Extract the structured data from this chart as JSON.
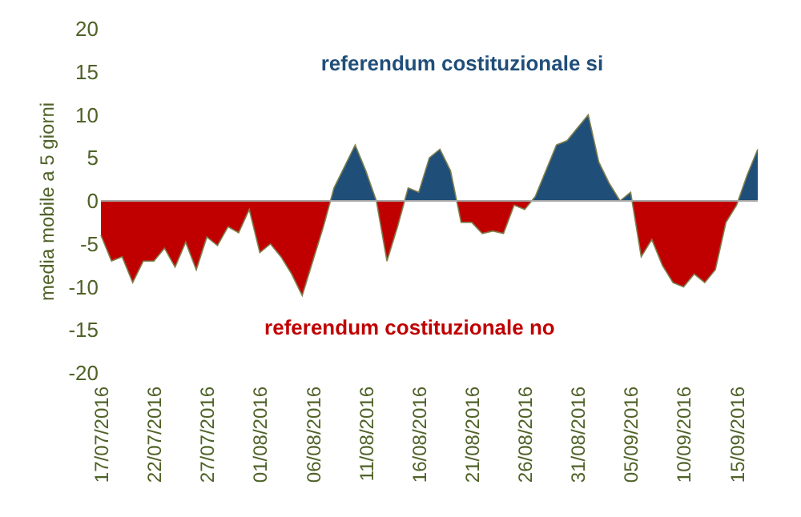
{
  "chart_data": {
    "type": "area",
    "ylabel": "media mobile a 5 giorni",
    "annotations": [
      "referendum costituzionale si",
      "referendum costituzionale no"
    ],
    "x": [
      "2016-07-17",
      "2016-07-18",
      "2016-07-19",
      "2016-07-20",
      "2016-07-21",
      "2016-07-22",
      "2016-07-23",
      "2016-07-24",
      "2016-07-25",
      "2016-07-26",
      "2016-07-27",
      "2016-07-28",
      "2016-07-29",
      "2016-07-30",
      "2016-07-31",
      "2016-08-01",
      "2016-08-02",
      "2016-08-03",
      "2016-08-04",
      "2016-08-05",
      "2016-08-06",
      "2016-08-07",
      "2016-08-08",
      "2016-08-09",
      "2016-08-10",
      "2016-08-11",
      "2016-08-12",
      "2016-08-13",
      "2016-08-14",
      "2016-08-15",
      "2016-08-16",
      "2016-08-17",
      "2016-08-18",
      "2016-08-19",
      "2016-08-20",
      "2016-08-21",
      "2016-08-22",
      "2016-08-23",
      "2016-08-24",
      "2016-08-25",
      "2016-08-26",
      "2016-08-27",
      "2016-08-28",
      "2016-08-29",
      "2016-08-30",
      "2016-08-31",
      "2016-09-01",
      "2016-09-02",
      "2016-09-03",
      "2016-09-04",
      "2016-09-05",
      "2016-09-06",
      "2016-09-07",
      "2016-09-08",
      "2016-09-09",
      "2016-09-10",
      "2016-09-11",
      "2016-09-12",
      "2016-09-13",
      "2016-09-14",
      "2016-09-15",
      "2016-09-16",
      "2016-09-17"
    ],
    "series": [
      {
        "colors": [
          "#c00000",
          "#c00000",
          "#c00000",
          "#c00000",
          "#c00000",
          "#c00000",
          "#c00000",
          "#c00000",
          "#c00000",
          "#c00000",
          "#c00000",
          "#c00000",
          "#c00000",
          "#c00000",
          "#c00000",
          "#c00000",
          "#c00000",
          "#c00000",
          "#c00000",
          "#c00000",
          "#c00000",
          "#c00000",
          "#1f4e79",
          "#1f4e79",
          "#1f4e79",
          "#1f4e79",
          "#c00000",
          "#c00000",
          "#c00000",
          "#1f4e79",
          "#1f4e79",
          "#1f4e79",
          "#1f4e79",
          "#1f4e79",
          "#c00000",
          "#c00000",
          "#c00000",
          "#c00000",
          "#c00000",
          "#c00000",
          "#c00000",
          "#1f4e79",
          "#1f4e79",
          "#1f4e79",
          "#1f4e79",
          "#1f4e79",
          "#1f4e79",
          "#1f4e79",
          "#1f4e79",
          "#c00000",
          "#1f4e79",
          "#c00000",
          "#c00000",
          "#c00000",
          "#c00000",
          "#c00000",
          "#c00000",
          "#c00000",
          "#c00000",
          "#c00000",
          "#c00000",
          "#1f4e79",
          "#1f4e79"
        ],
        "values": [
          -4,
          -7,
          -6.5,
          -9.5,
          -7,
          -7,
          -5.5,
          -7.7,
          -4.8,
          -8,
          -4.2,
          -5.2,
          -3,
          -3.7,
          -1,
          -6,
          -5,
          -6.5,
          -8.5,
          -11,
          -7,
          -3,
          1.5,
          4,
          6.5,
          3.5,
          0,
          -7,
          -3,
          1.5,
          1,
          5,
          6,
          3.5,
          -2.5,
          -2.5,
          -3.8,
          -3.5,
          -3.8,
          -0.5,
          -1,
          0.5,
          3.5,
          6.5,
          7,
          8.5,
          10,
          4.5,
          2,
          0,
          1,
          -6.5,
          -4.5,
          -7.5,
          -9.5,
          -10,
          -8.5,
          -9.5,
          -8,
          -2.5,
          -0.5,
          3,
          6
        ]
      }
    ],
    "xticks": [
      {
        "value": "2016-07-17",
        "label": "17/07/2016"
      },
      {
        "value": "2016-07-22",
        "label": "22/07/2016"
      },
      {
        "value": "2016-07-27",
        "label": "27/07/2016"
      },
      {
        "value": "2016-08-01",
        "label": "01/08/2016"
      },
      {
        "value": "2016-08-06",
        "label": "06/08/2016"
      },
      {
        "value": "2016-08-11",
        "label": "11/08/2016"
      },
      {
        "value": "2016-08-16",
        "label": "16/08/2016"
      },
      {
        "value": "2016-08-21",
        "label": "21/08/2016"
      },
      {
        "value": "2016-08-26",
        "label": "26/08/2016"
      },
      {
        "value": "2016-08-31",
        "label": "31/08/2016"
      },
      {
        "value": "2016-09-05",
        "label": "05/09/2016"
      },
      {
        "value": "2016-09-10",
        "label": "10/09/2016"
      },
      {
        "value": "2016-09-15",
        "label": "15/09/2016"
      }
    ],
    "xlim": [
      "2016-07-17",
      "2016-09-17"
    ],
    "ylim": [
      -20,
      20
    ],
    "yticks": [
      -20,
      -15,
      -10,
      -5,
      0,
      5,
      10,
      15,
      20
    ]
  }
}
